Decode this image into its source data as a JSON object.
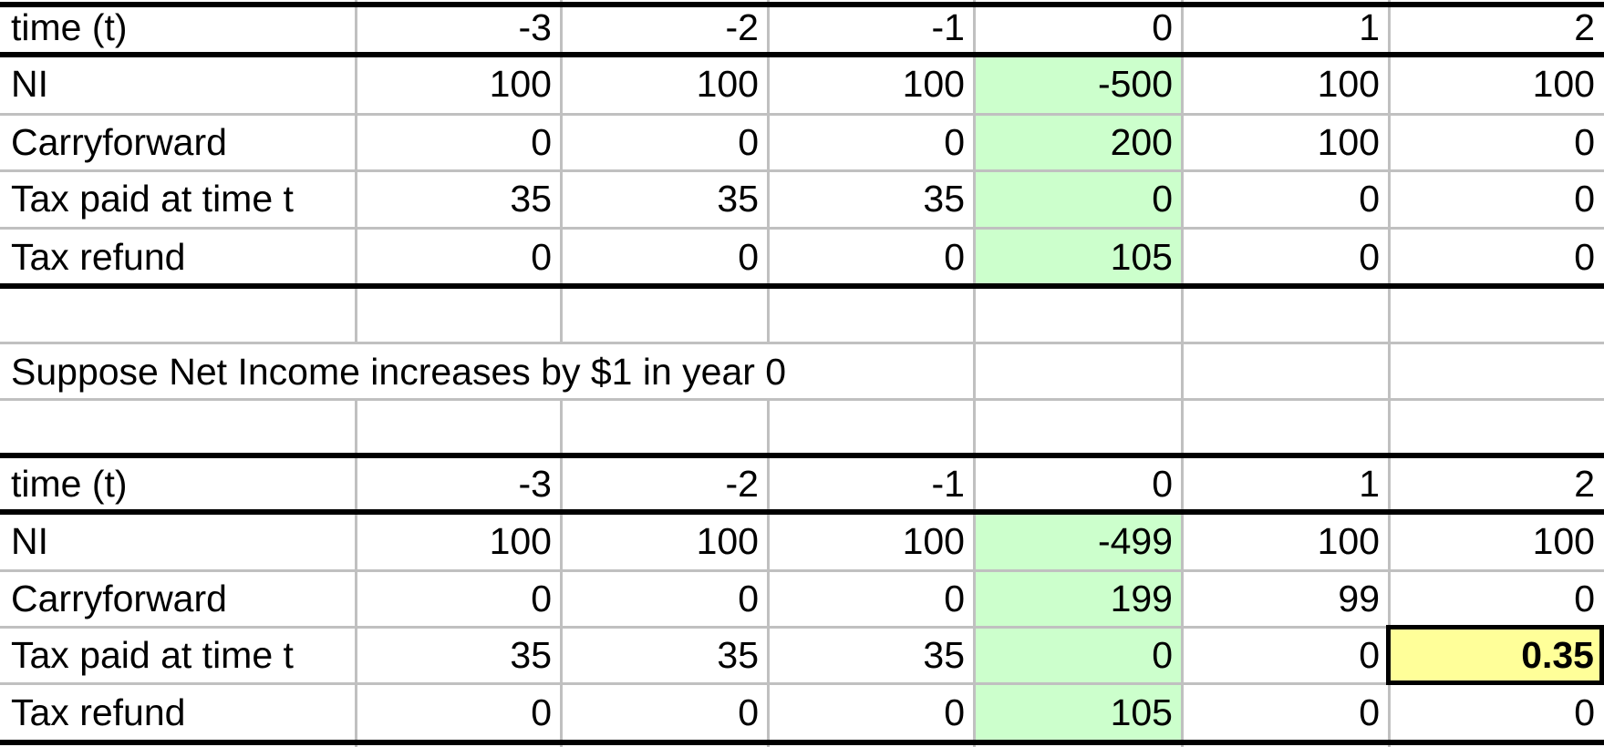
{
  "table1": {
    "header": [
      "time (t)",
      "-3",
      "-2",
      "-1",
      "0",
      "1",
      "2"
    ],
    "rows": [
      [
        "NI",
        "100",
        "100",
        "100",
        "-500",
        "100",
        "100"
      ],
      [
        "Carryforward",
        "0",
        "0",
        "0",
        "200",
        "100",
        "0"
      ],
      [
        "Tax paid at time t",
        "35",
        "35",
        "35",
        "0",
        "0",
        "0"
      ],
      [
        "Tax refund",
        "0",
        "0",
        "0",
        "105",
        "0",
        "0"
      ]
    ]
  },
  "note": "Suppose Net Income increases by $1 in year 0",
  "table2": {
    "header": [
      "time (t)",
      "-3",
      "-2",
      "-1",
      "0",
      "1",
      "2"
    ],
    "rows": [
      [
        "NI",
        "100",
        "100",
        "100",
        "-499",
        "100",
        "100"
      ],
      [
        "Carryforward",
        "0",
        "0",
        "0",
        "199",
        "99",
        "0"
      ],
      [
        "Tax paid at time t",
        "35",
        "35",
        "35",
        "0",
        "0",
        "0.35"
      ],
      [
        "Tax refund",
        "0",
        "0",
        "0",
        "105",
        "0",
        "0"
      ]
    ]
  },
  "colors": {
    "year0_fill": "#ccffcc",
    "highlight_fill": "#ffff99",
    "gridline": "#c0c0c0",
    "border": "#000000"
  },
  "highlighted_cell": {
    "table": "table2",
    "row": 2,
    "column": 6
  }
}
